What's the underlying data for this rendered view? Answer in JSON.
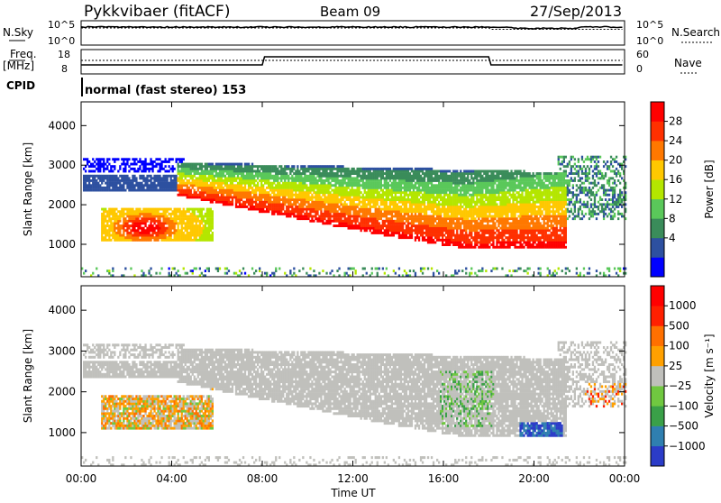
{
  "header": {
    "radar": "Pykkvibaer (fitACF)",
    "beam": "Beam 09",
    "date": "27/Sep/2013"
  },
  "param_panels": {
    "nsky": {
      "label": "N.Sky",
      "ticks": [
        "10^5",
        "10^0"
      ]
    },
    "nsearch": {
      "label": "N.Search",
      "ticks": [
        "10^5",
        "10^0"
      ]
    },
    "freq": {
      "label_line1": "Freq.",
      "label_line2": "[MHz]",
      "ticks": [
        "18",
        "8"
      ]
    },
    "nave": {
      "label": "Nave",
      "ticks": [
        "60",
        "0"
      ]
    },
    "cpid": {
      "label": "CPID",
      "text": "normal (fast stereo) 153"
    }
  },
  "chart_data": [
    {
      "type": "heatmap",
      "name": "power",
      "ylabel": "Slant Range [km]",
      "yticks": [
        1000,
        2000,
        3000,
        4000
      ],
      "ylim": [
        180,
        4600
      ],
      "colorbar_label": "Power [dB]",
      "colorbar_ticks": [
        "28",
        "24",
        "20",
        "16",
        "12",
        "8",
        "4"
      ],
      "colors": [
        "#0000ff",
        "#2d50a0",
        "#3a8c5a",
        "#5ac85a",
        "#b4e600",
        "#ffc800",
        "#ff7800",
        "#ff3000",
        "#ff0000"
      ]
    },
    {
      "type": "heatmap",
      "name": "velocity",
      "ylabel": "Slant Range [km]",
      "yticks": [
        1000,
        2000,
        3000,
        4000
      ],
      "ylim": [
        180,
        4600
      ],
      "colorbar_label": "Velocity [m s⁻¹]",
      "colorbar_ticks": [
        "1000",
        "500",
        "100",
        "25",
        "−25",
        "−100",
        "−500",
        "−1000"
      ],
      "colors": [
        "#2b3cc8",
        "#2f7fb0",
        "#3aa048",
        "#70c840",
        "#c0c0bc",
        "#ffa000",
        "#ff7000",
        "#ff2000",
        "#ff0000"
      ]
    }
  ],
  "xaxis": {
    "label": "Time UT",
    "ticks": [
      "00:00",
      "04:00",
      "08:00",
      "12:00",
      "16:00",
      "20:00",
      "00:00"
    ]
  }
}
